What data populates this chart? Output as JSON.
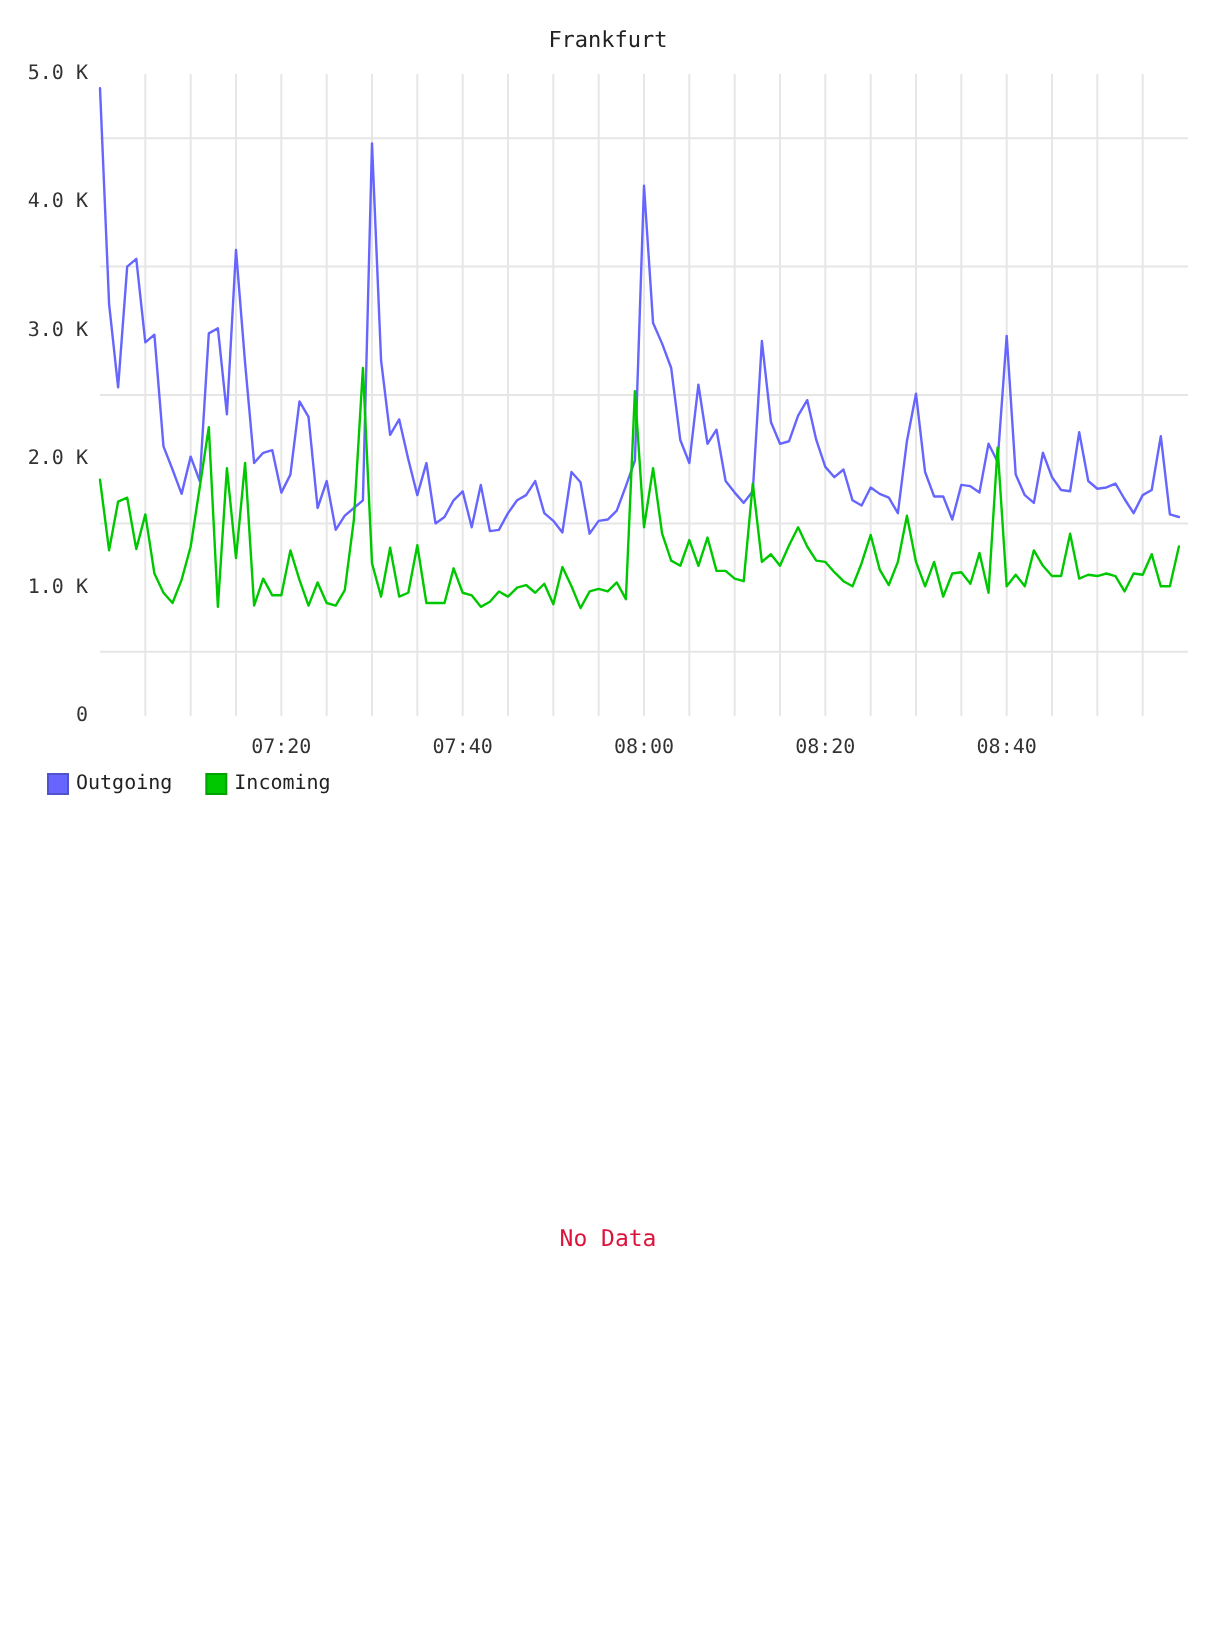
{
  "chart_data": [
    {
      "type": "line",
      "title": "Frankfurt",
      "x": [
        7,
        7.0167,
        7.0333,
        7.05,
        7.0667,
        7.0833,
        7.1,
        7.1167,
        7.1333,
        7.15,
        7.1667,
        7.1833,
        7.2,
        7.2167,
        7.2333,
        7.25,
        7.2667,
        7.2833,
        7.3,
        7.3167,
        7.3333,
        7.35,
        7.3667,
        7.3833,
        7.4,
        7.4167,
        7.4333,
        7.45,
        7.4667,
        7.4833,
        7.5,
        7.5167,
        7.5333,
        7.55,
        7.5667,
        7.5833,
        7.6,
        7.6167,
        7.6333,
        7.65,
        7.6667,
        7.6833,
        7.7,
        7.7167,
        7.7333,
        7.75,
        7.7667,
        7.7833,
        7.8,
        7.8167,
        7.8333,
        7.85,
        7.8667,
        7.8833,
        7.9,
        7.9167,
        7.9333,
        7.95,
        7.9667,
        7.9833,
        8,
        8.0167,
        8.0333,
        8.05,
        8.0667,
        8.0833,
        8.1,
        8.1167,
        8.1333,
        8.15,
        8.1667,
        8.1833,
        8.2,
        8.2167,
        8.2333,
        8.25,
        8.2667,
        8.2833,
        8.3,
        8.3167,
        8.3333,
        8.35,
        8.3667,
        8.3833,
        8.4,
        8.4167,
        8.4333,
        8.45,
        8.4667,
        8.4833,
        8.5,
        8.5167,
        8.5333,
        8.55,
        8.5667,
        8.5833,
        8.6,
        8.6167,
        8.6333,
        8.65,
        8.6667,
        8.6833,
        8.7,
        8.7167,
        8.7333,
        8.75,
        8.7667,
        8.7833,
        8.8,
        8.8167,
        8.8333,
        8.85,
        8.8667,
        8.8833,
        8.9,
        8.9167,
        8.9333,
        8.95,
        8.9667,
        8.9833
      ],
      "series": [
        {
          "name": "Outgoing",
          "color": "#6666ff",
          "values": [
            4890,
            3210,
            2560,
            3500,
            3560,
            2910,
            2970,
            2100,
            1920,
            1730,
            2020,
            1830,
            2980,
            3020,
            2350,
            3630,
            2750,
            1970,
            2050,
            2070,
            1740,
            1880,
            2450,
            2330,
            1620,
            1830,
            1450,
            1560,
            1620,
            1680,
            4460,
            2770,
            2190,
            2310,
            2000,
            1720,
            1970,
            1500,
            1550,
            1680,
            1750,
            1470,
            1800,
            1440,
            1450,
            1580,
            1680,
            1720,
            1830,
            1580,
            1520,
            1430,
            1900,
            1820,
            1420,
            1520,
            1530,
            1600,
            1790,
            1990,
            4130,
            3060,
            2900,
            2710,
            2150,
            1970,
            2580,
            2120,
            2230,
            1830,
            1740,
            1660,
            1750,
            2920,
            2290,
            2120,
            2140,
            2340,
            2460,
            2150,
            1940,
            1860,
            1920,
            1680,
            1640,
            1780,
            1730,
            1700,
            1580,
            2140,
            2510,
            1900,
            1710,
            1710,
            1530,
            1800,
            1790,
            1740,
            2120,
            1980,
            2960,
            1880,
            1720,
            1660,
            2050,
            1860,
            1760,
            1750,
            2210,
            1830,
            1770,
            1780,
            1810,
            1690,
            1580,
            1720,
            1760,
            2180,
            1570,
            1550
          ]
        },
        {
          "name": "Incoming",
          "color": "#00c800",
          "values": [
            1840,
            1290,
            1670,
            1700,
            1300,
            1570,
            1110,
            960,
            880,
            1060,
            1320,
            1780,
            2250,
            850,
            1930,
            1230,
            1970,
            860,
            1070,
            940,
            940,
            1290,
            1060,
            860,
            1040,
            880,
            860,
            980,
            1530,
            2710,
            1190,
            930,
            1310,
            930,
            960,
            1330,
            880,
            880,
            880,
            1150,
            960,
            940,
            850,
            890,
            970,
            930,
            1000,
            1020,
            960,
            1030,
            870,
            1160,
            1010,
            840,
            970,
            990,
            970,
            1040,
            910,
            2530,
            1470,
            1930,
            1420,
            1210,
            1170,
            1370,
            1170,
            1390,
            1130,
            1130,
            1070,
            1050,
            1810,
            1200,
            1260,
            1170,
            1330,
            1470,
            1320,
            1210,
            1200,
            1120,
            1050,
            1010,
            1190,
            1410,
            1140,
            1020,
            1200,
            1560,
            1200,
            1010,
            1200,
            930,
            1110,
            1120,
            1030,
            1270,
            960,
            2090,
            1010,
            1100,
            1010,
            1290,
            1170,
            1090,
            1090,
            1420,
            1070,
            1100,
            1090,
            1110,
            1090,
            970,
            1110,
            1100,
            1260,
            1010,
            1010,
            1320
          ]
        }
      ],
      "xlim": [
        7,
        9
      ],
      "xticks": [
        {
          "value": 7.0833,
          "label": null
        },
        {
          "value": 7.1667,
          "label": null
        },
        {
          "value": 7.25,
          "label": null
        },
        {
          "value": 7.3333,
          "label": "07:20"
        },
        {
          "value": 7.4167,
          "label": null
        },
        {
          "value": 7.5,
          "label": null
        },
        {
          "value": 7.5833,
          "label": null
        },
        {
          "value": 7.6667,
          "label": "07:40"
        },
        {
          "value": 7.75,
          "label": null
        },
        {
          "value": 7.8333,
          "label": null
        },
        {
          "value": 7.9167,
          "label": null
        },
        {
          "value": 8,
          "label": "08:00"
        },
        {
          "value": 8.0833,
          "label": null
        },
        {
          "value": 8.1667,
          "label": null
        },
        {
          "value": 8.25,
          "label": null
        },
        {
          "value": 8.3333,
          "label": "08:20"
        },
        {
          "value": 8.4167,
          "label": null
        },
        {
          "value": 8.5,
          "label": null
        },
        {
          "value": 8.5833,
          "label": null
        },
        {
          "value": 8.6667,
          "label": "08:40"
        },
        {
          "value": 8.75,
          "label": null
        },
        {
          "value": 8.8333,
          "label": null
        },
        {
          "value": 8.9167,
          "label": null
        }
      ],
      "ylim": [
        0,
        5000
      ],
      "yticks": [
        0,
        {
          "value": 500,
          "label": null
        },
        {
          "value": 1000,
          "label": "1.0 K"
        },
        {
          "value": 1500,
          "label": null
        },
        {
          "value": 2000,
          "label": "2.0 K"
        },
        {
          "value": 2500,
          "label": null
        },
        {
          "value": 3000,
          "label": "3.0 K"
        },
        {
          "value": 3500,
          "label": null
        },
        {
          "value": 4000,
          "label": "4.0 K"
        },
        {
          "value": 4500,
          "label": null
        },
        {
          "value": 5000,
          "label": "5.0 K"
        }
      ],
      "grid": true,
      "legend": "bottom left"
    },
    {
      "type": "other",
      "annotations": [
        "No Data"
      ]
    }
  ]
}
